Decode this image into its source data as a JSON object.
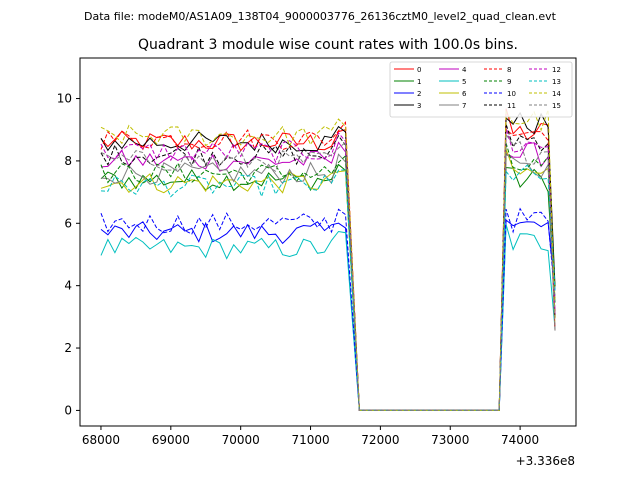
{
  "figure": {
    "suptitle": "Data file: modeM0/AS1A09_138T04_9000003776_26136cztM0_level2_quad_clean.evt",
    "title": "Quadrant 3 module wise count rates with 100.0s bins.",
    "x_offset_label": "+3.336e8"
  },
  "chart_data": {
    "type": "line",
    "title": "Quadrant 3 module wise count rates with 100.0s bins.",
    "xlabel": "",
    "ylabel": "",
    "x_offset": 333600000,
    "xlim": [
      67700,
      74800
    ],
    "ylim": [
      -0.5,
      11.3
    ],
    "xticks": [
      68000,
      69000,
      70000,
      71000,
      72000,
      73000,
      74000
    ],
    "yticks": [
      0,
      2,
      4,
      6,
      8,
      10
    ],
    "grid": false,
    "legend": {
      "placement": "top-right",
      "columns": 4
    },
    "series": [
      {
        "name": "0",
        "color": "#ff0000",
        "dash": "solid",
        "level": 8.6,
        "after": 9.3
      },
      {
        "name": "1",
        "color": "#008000",
        "dash": "solid",
        "level": 7.4,
        "after": 7.8
      },
      {
        "name": "2",
        "color": "#0000ff",
        "dash": "solid",
        "level": 5.7,
        "after": 6.3
      },
      {
        "name": "3",
        "color": "#000000",
        "dash": "solid",
        "level": 8.6,
        "after": 9.6
      },
      {
        "name": "4",
        "color": "#bf00bf",
        "dash": "solid",
        "level": 8.0,
        "after": 8.6
      },
      {
        "name": "5",
        "color": "#00bfbf",
        "dash": "solid",
        "level": 5.2,
        "after": 5.8
      },
      {
        "name": "6",
        "color": "#bfbf00",
        "dash": "solid",
        "level": 7.3,
        "after": 8.0
      },
      {
        "name": "7",
        "color": "#808080",
        "dash": "solid",
        "level": 7.6,
        "after": 8.1
      },
      {
        "name": "8",
        "color": "#ff0000",
        "dash": "dashed",
        "level": 8.7,
        "after": 9.4
      },
      {
        "name": "9",
        "color": "#008000",
        "dash": "dashed",
        "level": 7.6,
        "after": 8.2
      },
      {
        "name": "10",
        "color": "#0000ff",
        "dash": "dashed",
        "level": 6.0,
        "after": 6.5
      },
      {
        "name": "11",
        "color": "#000000",
        "dash": "dashed",
        "level": 8.2,
        "after": 9.1
      },
      {
        "name": "12",
        "color": "#bf00bf",
        "dash": "dashed",
        "level": 8.3,
        "after": 8.9
      },
      {
        "name": "13",
        "color": "#00bfbf",
        "dash": "dashed",
        "level": 7.2,
        "after": 7.9
      },
      {
        "name": "14",
        "color": "#bfbf00",
        "dash": "dashed",
        "level": 8.8,
        "after": 9.7
      },
      {
        "name": "15",
        "color": "#808080",
        "dash": "dashed",
        "level": 8.0,
        "after": 8.7
      }
    ],
    "segments": [
      {
        "x_start": 68000,
        "x_end": 71500,
        "state": "on"
      },
      {
        "x_start": 71700,
        "x_end": 73700,
        "state": "zero"
      },
      {
        "x_start": 73800,
        "x_end": 74500,
        "state": "on"
      }
    ]
  }
}
